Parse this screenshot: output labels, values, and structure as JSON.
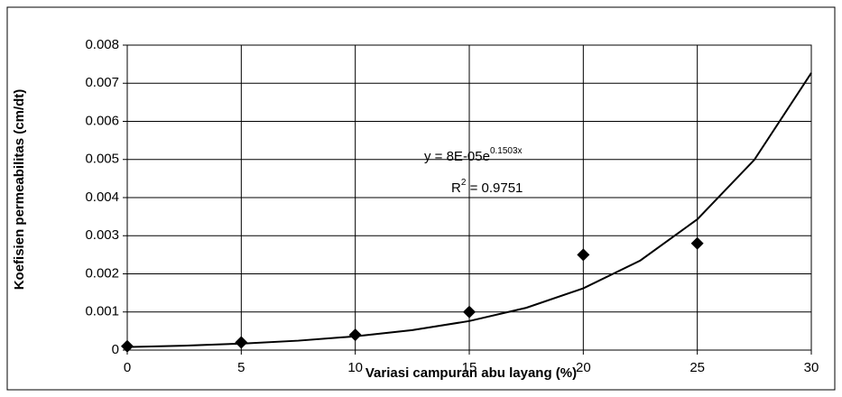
{
  "chart_data": {
    "type": "scatter",
    "x_label": "Variasi campuran abu layang (%)",
    "y_label": "Koefisien permeabilitas (cm/dt)",
    "xlim": [
      0,
      30
    ],
    "xticks": [
      0,
      5,
      10,
      15,
      20,
      25,
      30
    ],
    "ylim": [
      0,
      0.008
    ],
    "yticks": [
      0,
      0.001,
      0.002,
      0.003,
      0.004,
      0.005,
      0.006,
      0.007,
      0.008
    ],
    "grid": true,
    "series": [
      {
        "color": "#000000",
        "x": [
          0,
          5,
          10,
          15,
          20,
          25
        ],
        "values": [
          0.0001,
          0.0002,
          0.0004,
          0.001,
          0.0025,
          0.0028
        ]
      }
    ],
    "trendline": {
      "color": "#000000",
      "x": [
        0,
        2.5,
        5,
        7.5,
        10,
        12.5,
        15,
        17.5,
        20,
        22.5,
        25,
        27.5,
        30
      ],
      "values": [
        8e-05,
        0.000116,
        0.00017,
        0.000247,
        0.00036,
        0.000524,
        0.000762,
        0.00111,
        0.00162,
        0.00235,
        0.00343,
        0.00499,
        0.00727
      ]
    },
    "annotation": {
      "equation": "y = 8E-05e",
      "exponent": "0.1503x",
      "r2_symbol": "R",
      "r2_power": "2",
      "r2_value": " = 0.9751"
    }
  }
}
